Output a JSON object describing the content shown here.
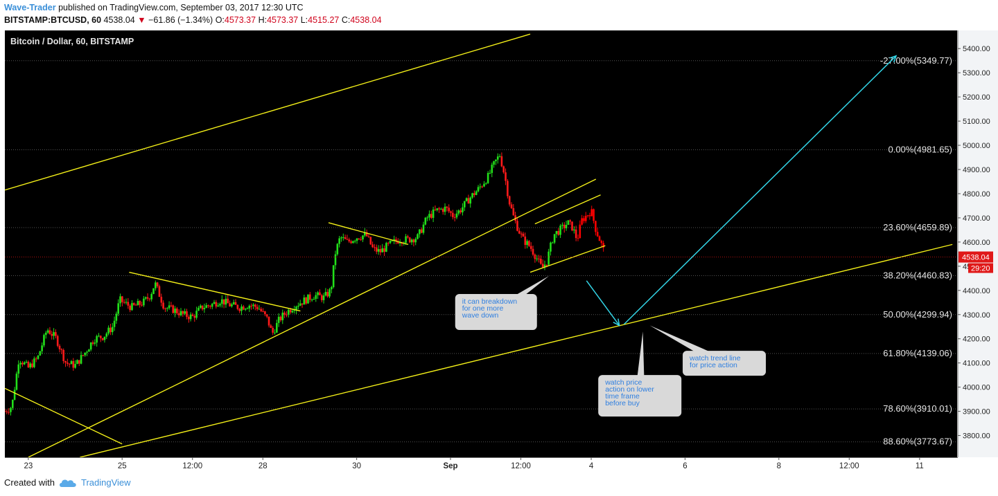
{
  "header": {
    "author": "Wave-Trader",
    "published_text": "published on TradingView.com, September 03, 2017 12:30 UTC",
    "symbol": "BITSTAMP:BTCUSD, 60",
    "last": "4538.04",
    "change": "−61.86 (−1.34%)",
    "o_label": "O:",
    "o_val": "4573.37",
    "h_label": "H:",
    "h_val": "4573.37",
    "l_label": "L:",
    "l_val": "4515.27",
    "c_label": "C:",
    "c_val": "4538.04"
  },
  "footer": {
    "created_with": "Created with",
    "brand": "TradingView"
  },
  "chart_data": {
    "type": "candlestick",
    "title": "Bitcoin / Dollar, 60, BITSTAMP",
    "ylim": [
      3710,
      5475
    ],
    "y_ticks": [
      3800,
      3900,
      4000,
      4100,
      4200,
      4300,
      4400,
      4500,
      4600,
      4700,
      4800,
      4900,
      5000,
      5100,
      5200,
      5300,
      5400
    ],
    "y_tick_labels": [
      "3800.00",
      "3900.00",
      "4000.00",
      "4100.00",
      "4200.00",
      "4300.00",
      "4400.00",
      "4500.00",
      "4600.00",
      "4700.00",
      "4800.00",
      "4900.00",
      "5000.00",
      "5100.00",
      "5200.00",
      "5300.00",
      "5400.00"
    ],
    "x_range": [
      0,
      20.3
    ],
    "x_ticks": [
      {
        "t": 0.5,
        "label": "23",
        "bold": false
      },
      {
        "t": 2.5,
        "label": "25",
        "bold": false
      },
      {
        "t": 4.0,
        "label": "12:00",
        "bold": false
      },
      {
        "t": 5.5,
        "label": "28",
        "bold": false
      },
      {
        "t": 7.5,
        "label": "30",
        "bold": false
      },
      {
        "t": 9.5,
        "label": "Sep",
        "bold": true
      },
      {
        "t": 11.0,
        "label": "12:00",
        "bold": false
      },
      {
        "t": 12.5,
        "label": "4",
        "bold": false
      },
      {
        "t": 14.5,
        "label": "6",
        "bold": false
      },
      {
        "t": 16.5,
        "label": "8",
        "bold": false
      },
      {
        "t": 18.0,
        "label": "12:00",
        "bold": false
      },
      {
        "t": 19.5,
        "label": "11",
        "bold": false
      }
    ],
    "last_price": 4538.04,
    "last_price_label": "4538.04",
    "countdown_label": "29:20",
    "fib_levels": [
      {
        "label": "-27.00%(5349.77)",
        "value": 5349.77
      },
      {
        "label": "0.00%(4981.65)",
        "value": 4981.65
      },
      {
        "label": "23.60%(4659.89)",
        "value": 4659.89
      },
      {
        "label": "38.20%(4460.83)",
        "value": 4460.83
      },
      {
        "label": "50.00%(4299.94)",
        "value": 4299.94
      },
      {
        "label": "61.80%(4139.06)",
        "value": 4139.06
      },
      {
        "label": "78.60%(3910.01)",
        "value": 3910.01
      },
      {
        "label": "88.60%(3773.67)",
        "value": 3773.67
      }
    ],
    "trend_lines": [
      {
        "t1": 0.0,
        "p1": 4815,
        "t2": 11.2,
        "p2": 5460
      },
      {
        "t1": 0.5,
        "p1": 3710,
        "t2": 12.6,
        "p2": 4860
      },
      {
        "t1": 1.6,
        "p1": 3710,
        "t2": 20.2,
        "p2": 4590
      },
      {
        "t1": 0.0,
        "p1": 3995,
        "t2": 2.5,
        "p2": 3765
      },
      {
        "t1": 2.65,
        "p1": 4475,
        "t2": 6.3,
        "p2": 4315
      },
      {
        "t1": 6.9,
        "p1": 4680,
        "t2": 8.6,
        "p2": 4590
      },
      {
        "t1": 11.3,
        "p1": 4675,
        "t2": 12.7,
        "p2": 4795
      },
      {
        "t1": 11.2,
        "p1": 4475,
        "t2": 12.8,
        "p2": 4585
      }
    ],
    "price_path": [
      [
        0.0,
        3900
      ],
      [
        0.15,
        3920
      ],
      [
        0.3,
        4120
      ],
      [
        0.5,
        4080
      ],
      [
        0.7,
        4120
      ],
      [
        0.9,
        4240
      ],
      [
        1.1,
        4200
      ],
      [
        1.3,
        4100
      ],
      [
        1.5,
        4090
      ],
      [
        1.7,
        4140
      ],
      [
        1.9,
        4200
      ],
      [
        2.1,
        4210
      ],
      [
        2.3,
        4250
      ],
      [
        2.45,
        4360
      ],
      [
        2.7,
        4330
      ],
      [
        2.95,
        4350
      ],
      [
        3.1,
        4380
      ],
      [
        3.2,
        4430
      ],
      [
        3.4,
        4330
      ],
      [
        3.6,
        4320
      ],
      [
        3.8,
        4300
      ],
      [
        4.0,
        4290
      ],
      [
        4.2,
        4330
      ],
      [
        4.4,
        4340
      ],
      [
        4.6,
        4360
      ],
      [
        4.8,
        4340
      ],
      [
        5.0,
        4330
      ],
      [
        5.2,
        4340
      ],
      [
        5.4,
        4330
      ],
      [
        5.6,
        4280
      ],
      [
        5.7,
        4220
      ],
      [
        5.85,
        4280
      ],
      [
        6.0,
        4310
      ],
      [
        6.2,
        4340
      ],
      [
        6.4,
        4360
      ],
      [
        6.6,
        4380
      ],
      [
        6.8,
        4370
      ],
      [
        6.95,
        4400
      ],
      [
        7.05,
        4560
      ],
      [
        7.15,
        4620
      ],
      [
        7.3,
        4600
      ],
      [
        7.5,
        4620
      ],
      [
        7.7,
        4630
      ],
      [
        7.85,
        4570
      ],
      [
        8.0,
        4560
      ],
      [
        8.2,
        4590
      ],
      [
        8.4,
        4610
      ],
      [
        8.6,
        4610
      ],
      [
        8.8,
        4620
      ],
      [
        9.0,
        4700
      ],
      [
        9.2,
        4730
      ],
      [
        9.4,
        4740
      ],
      [
        9.55,
        4710
      ],
      [
        9.7,
        4730
      ],
      [
        9.9,
        4780
      ],
      [
        10.1,
        4820
      ],
      [
        10.3,
        4870
      ],
      [
        10.45,
        4930
      ],
      [
        10.55,
        4960
      ],
      [
        10.65,
        4880
      ],
      [
        10.75,
        4770
      ],
      [
        10.85,
        4700
      ],
      [
        10.95,
        4650
      ],
      [
        11.05,
        4610
      ],
      [
        11.2,
        4580
      ],
      [
        11.35,
        4530
      ],
      [
        11.45,
        4490
      ],
      [
        11.55,
        4520
      ],
      [
        11.7,
        4630
      ],
      [
        11.9,
        4660
      ],
      [
        12.0,
        4680
      ],
      [
        12.1,
        4660
      ],
      [
        12.2,
        4610
      ],
      [
        12.3,
        4690
      ],
      [
        12.4,
        4710
      ],
      [
        12.5,
        4730
      ],
      [
        12.6,
        4650
      ],
      [
        12.7,
        4600
      ],
      [
        12.8,
        4545
      ]
    ],
    "cyan_arrows": [
      {
        "t1": 12.4,
        "p1": 4440,
        "t2": 13.1,
        "p2": 4255
      },
      {
        "t1": 13.2,
        "p1": 4260,
        "t2": 19.0,
        "p2": 5370
      }
    ],
    "callouts": [
      {
        "lines": [
          "it can breakdown",
          "for one more",
          "wave down"
        ],
        "box_t": 9.6,
        "box_p": 4385,
        "box_w": 118,
        "box_h": 52,
        "tail_t": 11.6,
        "tail_p": 4460
      },
      {
        "lines": [
          "watch price",
          "action on lower",
          "time frame",
          "before buy"
        ],
        "box_t": 12.65,
        "box_p": 4050,
        "box_w": 120,
        "box_h": 60,
        "tail_t": 13.6,
        "tail_p": 4230
      },
      {
        "lines": [
          "watch trend line",
          "for price action"
        ],
        "box_t": 14.45,
        "box_p": 4150,
        "box_w": 120,
        "box_h": 36,
        "tail_t": 13.75,
        "tail_p": 4255
      }
    ]
  }
}
